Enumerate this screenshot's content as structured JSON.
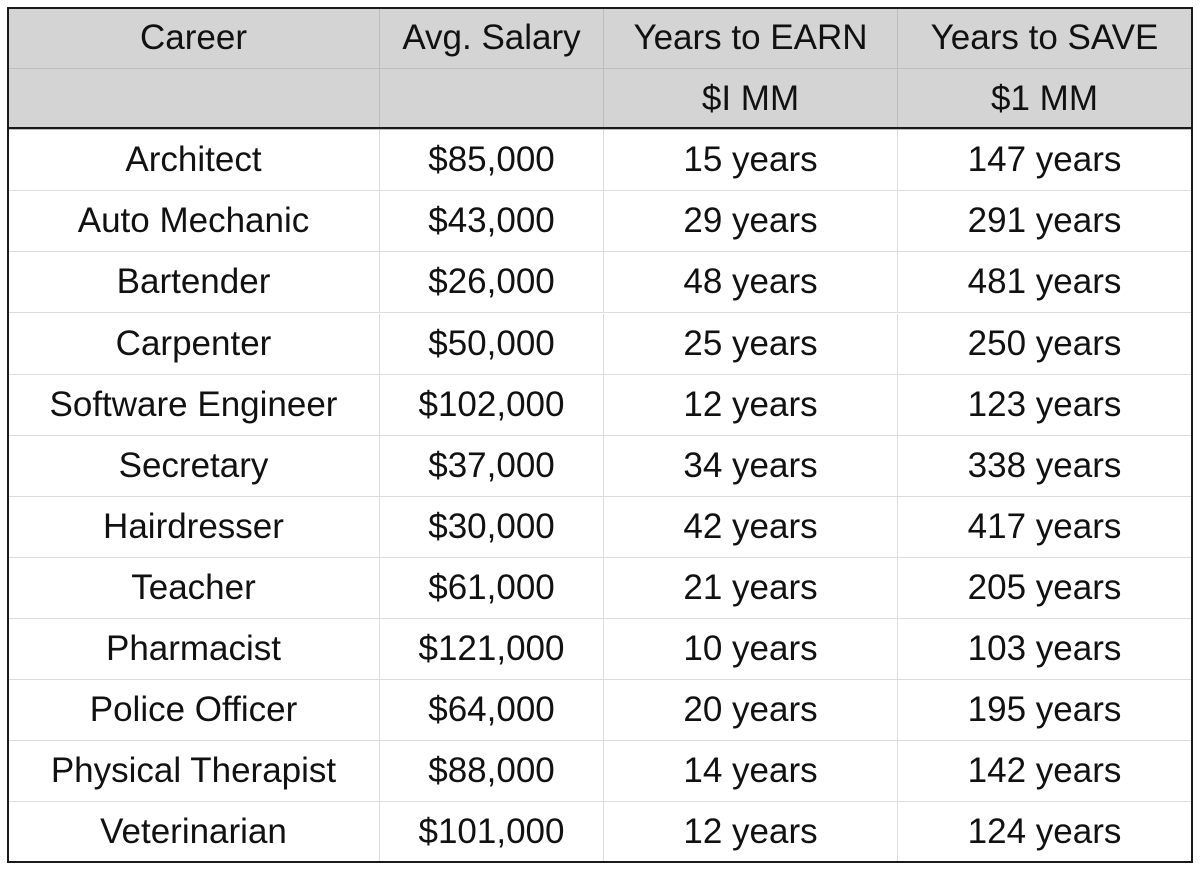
{
  "header": {
    "columns": [
      "Career",
      "Avg. Salary",
      "Years to EARN",
      "Years to SAVE"
    ],
    "sub_columns": [
      "$I MM",
      "$1 MM"
    ]
  },
  "table": {
    "rows": [
      [
        "Architect",
        "$85,000",
        "15 years",
        "147 years"
      ],
      [
        "Auto Mechanic",
        "$43,000",
        "29 years",
        "291 years"
      ],
      [
        "Bartender",
        "$26,000",
        "48 years",
        "481 years"
      ],
      [
        "Carpenter",
        "$50,000",
        "25 years",
        "250 years"
      ],
      [
        "Software Engineer",
        "$102,000",
        "12 years",
        "123 years"
      ],
      [
        "Secretary",
        "$37,000",
        "34 years",
        "338 years"
      ],
      [
        "Hairdresser",
        "$30,000",
        "42 years",
        "417 years"
      ],
      [
        "Teacher",
        "$61,000",
        "21 years",
        "205 years"
      ],
      [
        "Pharmacist",
        "$121,000",
        "10 years",
        "103 years"
      ],
      [
        "Police Officer",
        "$64,000",
        "20 years",
        "195 years"
      ],
      [
        "Physical Therapist",
        "$88,000",
        "14 years",
        "142 years"
      ],
      [
        "Veterinarian",
        "$101,000",
        "12 years",
        "124 years"
      ]
    ]
  }
}
